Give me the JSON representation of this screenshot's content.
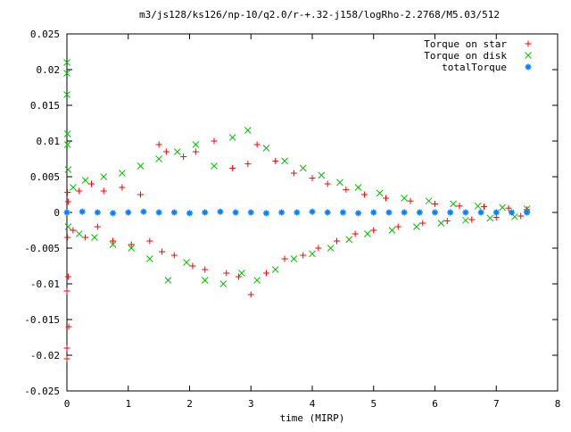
{
  "chart_data": {
    "type": "scatter",
    "title": "m3/js128/ks126/np-10/q2.0/r-+.32-j158/logRho-2.2768/M5.03/512",
    "xlabel": "time (MIRP)",
    "ylabel": "",
    "xlim": [
      0,
      8
    ],
    "ylim": [
      -0.025,
      0.025
    ],
    "xticks": [
      "0",
      "1",
      "2",
      "3",
      "4",
      "5",
      "6",
      "7",
      "8"
    ],
    "yticks": [
      "-0.025",
      "-0.02",
      "-0.015",
      "-0.01",
      "-0.005",
      "0",
      "0.005",
      "0.01",
      "0.015",
      "0.02",
      "0.025"
    ],
    "legend_position": "top-right",
    "grid": false,
    "series": [
      {
        "name": "Torque on star",
        "marker": "plus",
        "color": "#ff0000",
        "x": [
          0.0,
          0.0,
          0.0,
          0.01,
          0.01,
          0.02,
          0.02,
          0.03,
          0.1,
          0.2,
          0.3,
          0.4,
          0.5,
          0.6,
          0.75,
          0.9,
          1.05,
          1.2,
          1.35,
          1.5,
          1.55,
          1.62,
          1.75,
          1.9,
          2.05,
          2.1,
          2.25,
          2.4,
          2.6,
          2.7,
          2.8,
          2.95,
          3.0,
          3.1,
          3.25,
          3.4,
          3.55,
          3.7,
          3.85,
          4.0,
          4.1,
          4.25,
          4.4,
          4.55,
          4.7,
          4.85,
          5.0,
          5.2,
          5.4,
          5.6,
          5.8,
          6.0,
          6.2,
          6.4,
          6.6,
          6.8,
          7.0,
          7.2,
          7.4,
          7.5
        ],
        "y": [
          -0.011,
          -0.019,
          -0.0205,
          0.0028,
          -0.0035,
          0.0015,
          -0.009,
          -0.016,
          -0.0025,
          0.003,
          -0.0035,
          0.004,
          -0.002,
          0.003,
          -0.004,
          0.0035,
          -0.0045,
          0.0025,
          -0.004,
          0.0095,
          -0.0055,
          0.0085,
          -0.006,
          0.0078,
          -0.0075,
          0.0085,
          -0.008,
          0.01,
          -0.0085,
          0.0062,
          -0.009,
          0.0068,
          -0.0115,
          0.0095,
          -0.0085,
          0.0072,
          -0.0065,
          0.0055,
          -0.006,
          0.0048,
          -0.005,
          0.004,
          -0.004,
          0.0032,
          -0.003,
          0.0025,
          -0.0025,
          0.002,
          -0.002,
          0.0016,
          -0.0015,
          0.0012,
          -0.0012,
          0.0009,
          -0.001,
          0.0008,
          -0.0007,
          0.0006,
          -0.0005,
          0.0004
        ]
      },
      {
        "name": "Torque on disk",
        "marker": "cross",
        "color": "#00c000",
        "x": [
          0.0,
          0.0,
          0.0,
          0.01,
          0.01,
          0.02,
          0.02,
          0.1,
          0.2,
          0.3,
          0.45,
          0.6,
          0.75,
          0.9,
          1.05,
          1.2,
          1.35,
          1.5,
          1.65,
          1.8,
          1.95,
          2.1,
          2.25,
          2.4,
          2.55,
          2.7,
          2.85,
          2.95,
          3.1,
          3.25,
          3.4,
          3.55,
          3.7,
          3.85,
          4.0,
          4.15,
          4.3,
          4.45,
          4.6,
          4.75,
          4.9,
          5.1,
          5.3,
          5.5,
          5.7,
          5.9,
          6.1,
          6.3,
          6.5,
          6.7,
          6.9,
          7.1,
          7.3,
          7.5
        ],
        "y": [
          0.021,
          0.0195,
          0.0165,
          0.011,
          0.0095,
          0.006,
          -0.002,
          0.0035,
          -0.003,
          0.0045,
          -0.0035,
          0.005,
          -0.0045,
          0.0055,
          -0.005,
          0.0065,
          -0.0065,
          0.0075,
          -0.0095,
          0.0085,
          -0.007,
          0.0095,
          -0.0095,
          0.0065,
          -0.01,
          0.0105,
          -0.0085,
          0.0115,
          -0.0095,
          0.009,
          -0.008,
          0.0072,
          -0.0065,
          0.0062,
          -0.0058,
          0.0052,
          -0.005,
          0.0042,
          -0.0038,
          0.0035,
          -0.003,
          0.0027,
          -0.0025,
          0.002,
          -0.002,
          0.0016,
          -0.0015,
          0.0012,
          -0.0011,
          0.0009,
          -0.0008,
          0.0007,
          -0.0006,
          0.0005
        ]
      },
      {
        "name": "totalTorque",
        "marker": "star",
        "color": "#0080ff",
        "x": [
          0.0,
          0.25,
          0.5,
          0.75,
          1.0,
          1.25,
          1.5,
          1.75,
          2.0,
          2.25,
          2.5,
          2.75,
          3.0,
          3.25,
          3.5,
          3.75,
          4.0,
          4.25,
          4.5,
          4.75,
          5.0,
          5.25,
          5.5,
          5.75,
          6.0,
          6.25,
          6.5,
          6.75,
          7.0,
          7.25,
          7.5
        ],
        "y": [
          0.0,
          0.0001,
          0.0,
          -0.0001,
          0.0,
          0.0001,
          0.0,
          0.0,
          -0.0001,
          0.0,
          0.0001,
          0.0,
          0.0,
          -0.0001,
          0.0,
          0.0,
          0.0001,
          0.0,
          0.0,
          -0.0001,
          0.0,
          0.0,
          0.0,
          0.0,
          0.0,
          0.0,
          0.0,
          0.0,
          0.0,
          0.0,
          0.0
        ]
      }
    ]
  }
}
